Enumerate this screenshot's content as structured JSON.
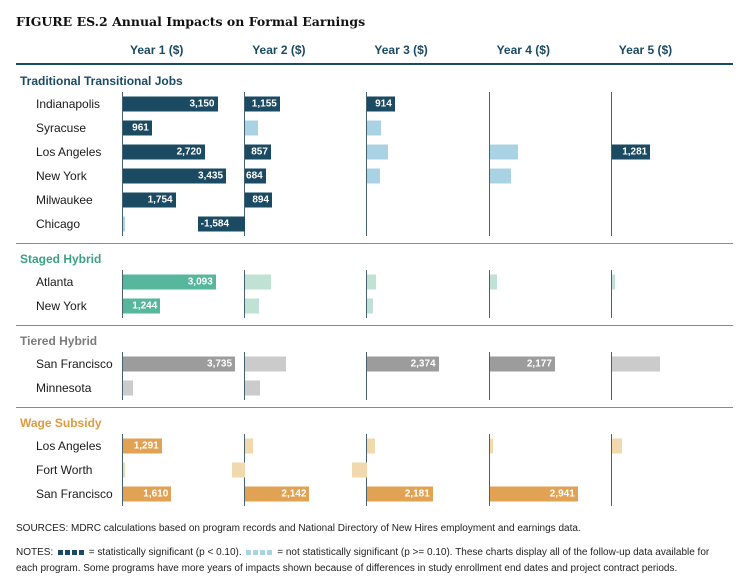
{
  "title": "FIGURE ES.2 Annual Impacts on Formal Earnings",
  "chart_data": {
    "type": "bar",
    "orientation": "horizontal",
    "title": "FIGURE ES.2 Annual Impacts on Formal Earnings",
    "columns": [
      "Year 1 ($)",
      "Year 2 ($)",
      "Year 3 ($)",
      "Year 4 ($)",
      "Year 5 ($)"
    ],
    "x_max": 3800,
    "legend": {
      "significant": "statistically significant (p < 0.10)",
      "not_significant": "not statistically significant (p >= 0.10)",
      "significant_color": "#1b4a63",
      "not_significant_color": "#a9d3e4"
    },
    "groups": [
      {
        "name": "Traditional Transitional Jobs",
        "header_color": "#1b4a63",
        "color_significant": "#1b4a63",
        "color_not_significant": "#a9d3e4",
        "rows": [
          {
            "city": "Indianapolis",
            "bars": [
              {
                "value": 3150,
                "label": "3,150",
                "significant": true
              },
              {
                "value": 1155,
                "label": "1,155",
                "significant": true
              },
              {
                "value": 914,
                "label": "914",
                "significant": true
              },
              null,
              null
            ]
          },
          {
            "city": "Syracuse",
            "bars": [
              {
                "value": 961,
                "label": "961",
                "significant": true
              },
              {
                "value": 420,
                "significant": false
              },
              {
                "value": 470,
                "significant": false
              },
              null,
              null
            ]
          },
          {
            "city": "Los Angeles",
            "bars": [
              {
                "value": 2720,
                "label": "2,720",
                "significant": true
              },
              {
                "value": 857,
                "label": "857",
                "significant": true
              },
              {
                "value": 700,
                "significant": false
              },
              {
                "value": 950,
                "significant": false
              },
              {
                "value": 1281,
                "label": "1,281",
                "significant": true
              }
            ]
          },
          {
            "city": "New York",
            "bars": [
              {
                "value": 3435,
                "label": "3,435",
                "significant": true
              },
              {
                "value": 684,
                "label": "684",
                "significant": true
              },
              {
                "value": 420,
                "significant": false
              },
              {
                "value": 700,
                "significant": false
              },
              null
            ]
          },
          {
            "city": "Milwaukee",
            "bars": [
              {
                "value": 1754,
                "label": "1,754",
                "significant": true
              },
              {
                "value": 894,
                "label": "894",
                "significant": true
              },
              null,
              null,
              null
            ]
          },
          {
            "city": "Chicago",
            "bars": [
              {
                "value": 65,
                "significant": false
              },
              {
                "value": -1584,
                "label": "-1,584",
                "significant": true
              },
              null,
              null,
              null
            ]
          }
        ]
      },
      {
        "name": "Staged Hybrid",
        "header_color": "#3ba184",
        "color_significant": "#57b79c",
        "color_not_significant": "#bfe2d5",
        "rows": [
          {
            "city": "Atlanta",
            "bars": [
              {
                "value": 3093,
                "label": "3,093",
                "significant": true
              },
              {
                "value": 850,
                "significant": false
              },
              {
                "value": 280,
                "significant": false
              },
              {
                "value": 250,
                "significant": false
              },
              {
                "value": 110,
                "significant": false
              }
            ]
          },
          {
            "city": "New York",
            "bars": [
              {
                "value": 1244,
                "label": "1,244",
                "significant": true
              },
              {
                "value": 450,
                "significant": false
              },
              {
                "value": 180,
                "significant": false
              },
              null,
              null
            ]
          }
        ]
      },
      {
        "name": "Tiered Hybrid",
        "header_color": "#7b7b7b",
        "color_significant": "#9c9c9c",
        "color_not_significant": "#cbcbcb",
        "rows": [
          {
            "city": "San Francisco",
            "bars": [
              {
                "value": 3735,
                "label": "3,735",
                "significant": true
              },
              {
                "value": 1350,
                "significant": false
              },
              {
                "value": 2374,
                "label": "2,374",
                "significant": true
              },
              {
                "value": 2177,
                "label": "2,177",
                "significant": true
              },
              {
                "value": 1600,
                "significant": false
              }
            ]
          },
          {
            "city": "Minnesota",
            "bars": [
              {
                "value": 330,
                "significant": false
              },
              {
                "value": 490,
                "significant": false
              },
              null,
              null,
              null
            ]
          }
        ]
      },
      {
        "name": "Wage Subsidy",
        "header_color": "#dd9a3f",
        "color_significant": "#e2a253",
        "color_not_significant": "#f2d9ad",
        "rows": [
          {
            "city": "Los Angeles",
            "bars": [
              {
                "value": 1291,
                "label": "1,291",
                "significant": true
              },
              {
                "value": 270,
                "significant": false
              },
              {
                "value": 270,
                "significant": false
              },
              {
                "value": 100,
                "significant": false
              },
              {
                "value": 330,
                "significant": false
              }
            ]
          },
          {
            "city": "Fort Worth",
            "bars": [
              {
                "value": 70,
                "significant": false
              },
              {
                "value": -430,
                "significant": false
              },
              {
                "value": -520,
                "significant": false
              },
              null,
              null
            ]
          },
          {
            "city": "San Francisco",
            "bars": [
              {
                "value": 1610,
                "label": "1,610",
                "significant": true
              },
              {
                "value": 2142,
                "label": "2,142",
                "significant": true
              },
              {
                "value": 2181,
                "label": "2,181",
                "significant": true
              },
              {
                "value": 2941,
                "label": "2,941",
                "significant": true
              },
              null
            ]
          }
        ]
      }
    ]
  },
  "footer": {
    "sources": "SOURCES: MDRC calculations based on program records and National Directory of New Hires employment and earnings data.",
    "notes_label": "NOTES:",
    "notes_sig": "= statistically significant (p < 0.10).",
    "notes_ns": "= not statistically significant (p >= 0.10).",
    "notes_rest": "These charts display all of the follow-up data available for each program. Some programs have more years of impacts shown because of differences in study enrollment end dates and project contract periods."
  }
}
